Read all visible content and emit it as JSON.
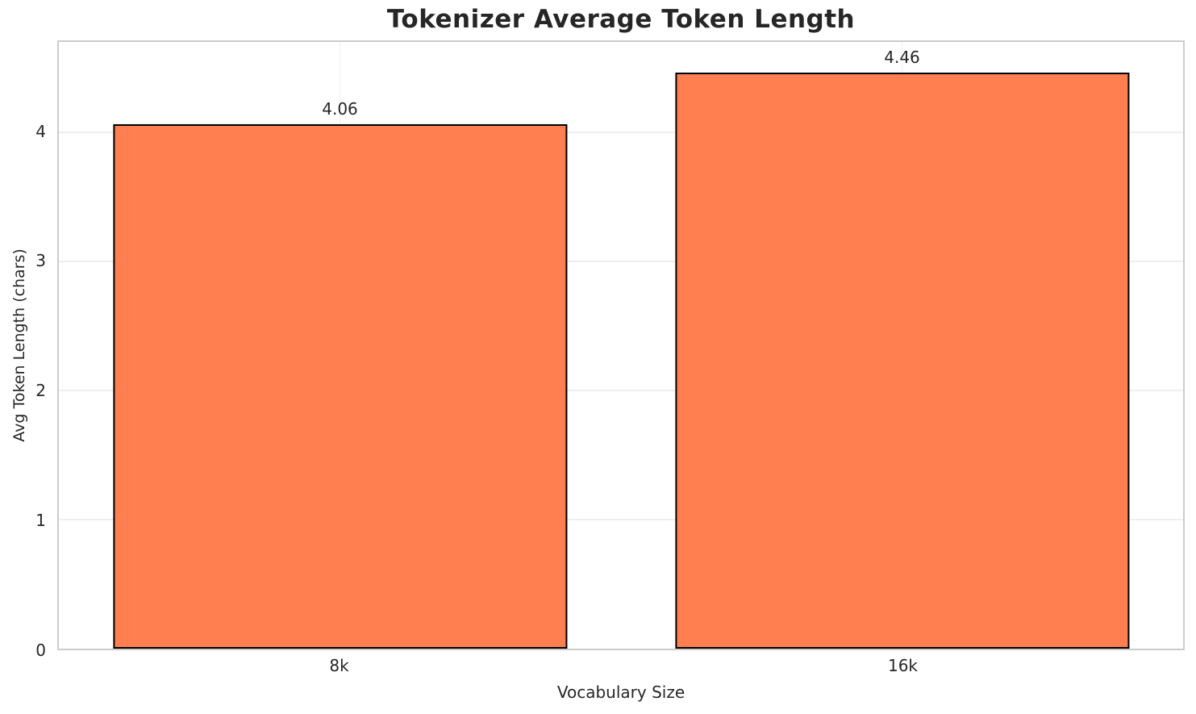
{
  "chart_data": {
    "type": "bar",
    "title": "Tokenizer Average Token Length",
    "categories": [
      "8k",
      "16k"
    ],
    "values": [
      4.06,
      4.46
    ],
    "value_labels": [
      "4.06",
      "4.46"
    ],
    "xlabel": "Vocabulary Size",
    "ylabel": "Avg Token Length (chars)",
    "ylim": [
      0,
      4.7
    ],
    "yticks": [
      0,
      1,
      2,
      3,
      4
    ],
    "grid": "on",
    "legend": "none",
    "bar_color": "#FF7F50",
    "bar_edge_color": "#000000",
    "grid_color": "#efefef",
    "spine_color": "#cccccc",
    "text_color": "#262626",
    "background_color": "#ffffff"
  }
}
